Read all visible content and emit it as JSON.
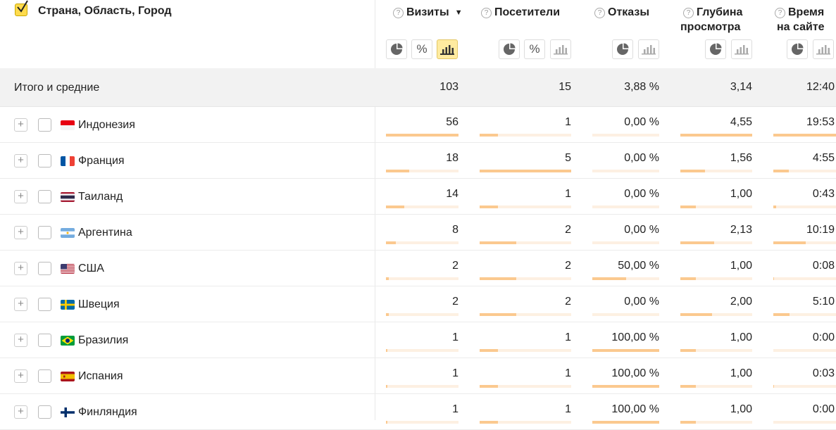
{
  "dimension_title": "Страна, Область, Город",
  "columns": [
    {
      "key": "visits",
      "label1": "Визиты",
      "label2": "",
      "sorted": true,
      "sort_arrow": "▼",
      "help": "?"
    },
    {
      "key": "visitors",
      "label1": "Посетители",
      "label2": "",
      "help": "?"
    },
    {
      "key": "bounces",
      "label1": "Отказы",
      "label2": "",
      "help": "?"
    },
    {
      "key": "depth",
      "label1": "Глубина",
      "label2": "просмотра",
      "help": "?"
    },
    {
      "key": "time",
      "label1": "Время",
      "label2": "на сайте",
      "help": "?"
    }
  ],
  "percent_glyph": "%",
  "totals": {
    "label": "Итого и средние",
    "values": [
      "103",
      "15",
      "3,88 %",
      "3,14",
      "12:40"
    ]
  },
  "rows": [
    {
      "country": "Индонезия",
      "flag": "id",
      "values": [
        "56",
        "1",
        "0,00 %",
        "4,55",
        "19:53"
      ],
      "ratios": [
        1.0,
        0.2,
        0.0,
        1.0,
        1.0
      ]
    },
    {
      "country": "Франция",
      "flag": "fr",
      "values": [
        "18",
        "5",
        "0,00 %",
        "1,56",
        "4:55"
      ],
      "ratios": [
        0.32,
        1.0,
        0.0,
        0.34,
        0.25
      ]
    },
    {
      "country": "Таиланд",
      "flag": "th",
      "values": [
        "14",
        "1",
        "0,00 %",
        "1,00",
        "0:43"
      ],
      "ratios": [
        0.25,
        0.2,
        0.0,
        0.22,
        0.04
      ]
    },
    {
      "country": "Аргентина",
      "flag": "ar",
      "values": [
        "8",
        "2",
        "0,00 %",
        "2,13",
        "10:19"
      ],
      "ratios": [
        0.14,
        0.4,
        0.0,
        0.47,
        0.52
      ]
    },
    {
      "country": "США",
      "flag": "us",
      "values": [
        "2",
        "2",
        "50,00 %",
        "1,00",
        "0:08"
      ],
      "ratios": [
        0.04,
        0.4,
        0.5,
        0.22,
        0.01
      ]
    },
    {
      "country": "Швеция",
      "flag": "se",
      "values": [
        "2",
        "2",
        "0,00 %",
        "2,00",
        "5:10"
      ],
      "ratios": [
        0.04,
        0.4,
        0.0,
        0.44,
        0.26
      ]
    },
    {
      "country": "Бразилия",
      "flag": "br",
      "values": [
        "1",
        "1",
        "100,00 %",
        "1,00",
        "0:00"
      ],
      "ratios": [
        0.02,
        0.2,
        1.0,
        0.22,
        0.0
      ]
    },
    {
      "country": "Испания",
      "flag": "es",
      "values": [
        "1",
        "1",
        "100,00 %",
        "1,00",
        "0:03"
      ],
      "ratios": [
        0.02,
        0.2,
        1.0,
        0.22,
        0.01
      ]
    },
    {
      "country": "Финляндия",
      "flag": "fi",
      "values": [
        "1",
        "1",
        "100,00 %",
        "1,00",
        "0:00"
      ],
      "ratios": [
        0.02,
        0.2,
        1.0,
        0.22,
        0.0
      ]
    }
  ]
}
